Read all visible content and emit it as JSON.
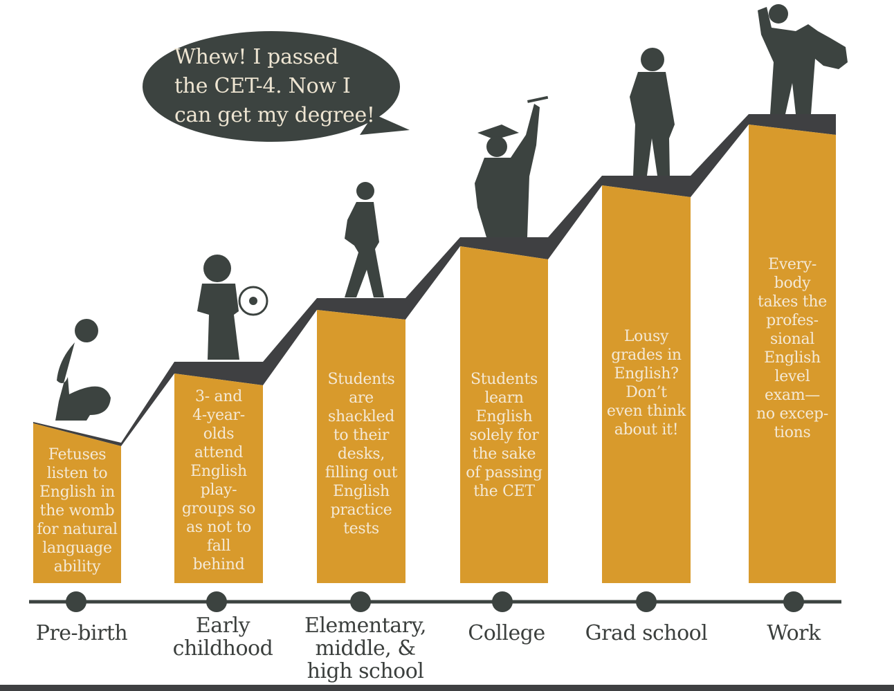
{
  "colors": {
    "bar": "#D89A2C",
    "dark": "#3f4042",
    "silhouette": "#3c4340",
    "bar_text": "#f4e9d6"
  },
  "speech_bubble": "Whew! I passed\nthe CET-4. Now I\ncan get my degree!",
  "stages": [
    {
      "label": "Pre-birth",
      "text": "Fetuses\nlisten to\nEnglish in\nthe womb\nfor natural\nlanguage\nability",
      "icon": "pregnant-woman-silhouette"
    },
    {
      "label": "Early\nchildhood",
      "text": "3- and\n4-year-\nolds\nattend\nEnglish\nplay-\ngroups so\nas not to\nfall\nbehind",
      "icon": "child-with-ball-silhouette"
    },
    {
      "label": "Elementary,\nmiddle, &\nhigh school",
      "text": "Students\nare\nshackled\nto their\ndesks,\nfilling out\nEnglish\npractice\ntests",
      "icon": "student-backpack-silhouette"
    },
    {
      "label": "College",
      "text": "Students\nlearn\nEnglish\nsolely for\nthe sake\nof passing\nthe CET",
      "icon": "graduate-silhouette"
    },
    {
      "label": "Grad school",
      "text": "Lousy\ngrades in\nEnglish?\nDon’t\neven think\nabout it!",
      "icon": "man-standing-silhouette"
    },
    {
      "label": "Work",
      "text": "Every-\nbody\ntakes the\nprofes-\nsional\nEnglish\nlevel\nexam—\nno excep-\ntions",
      "icon": "businessman-silhouette"
    }
  ]
}
